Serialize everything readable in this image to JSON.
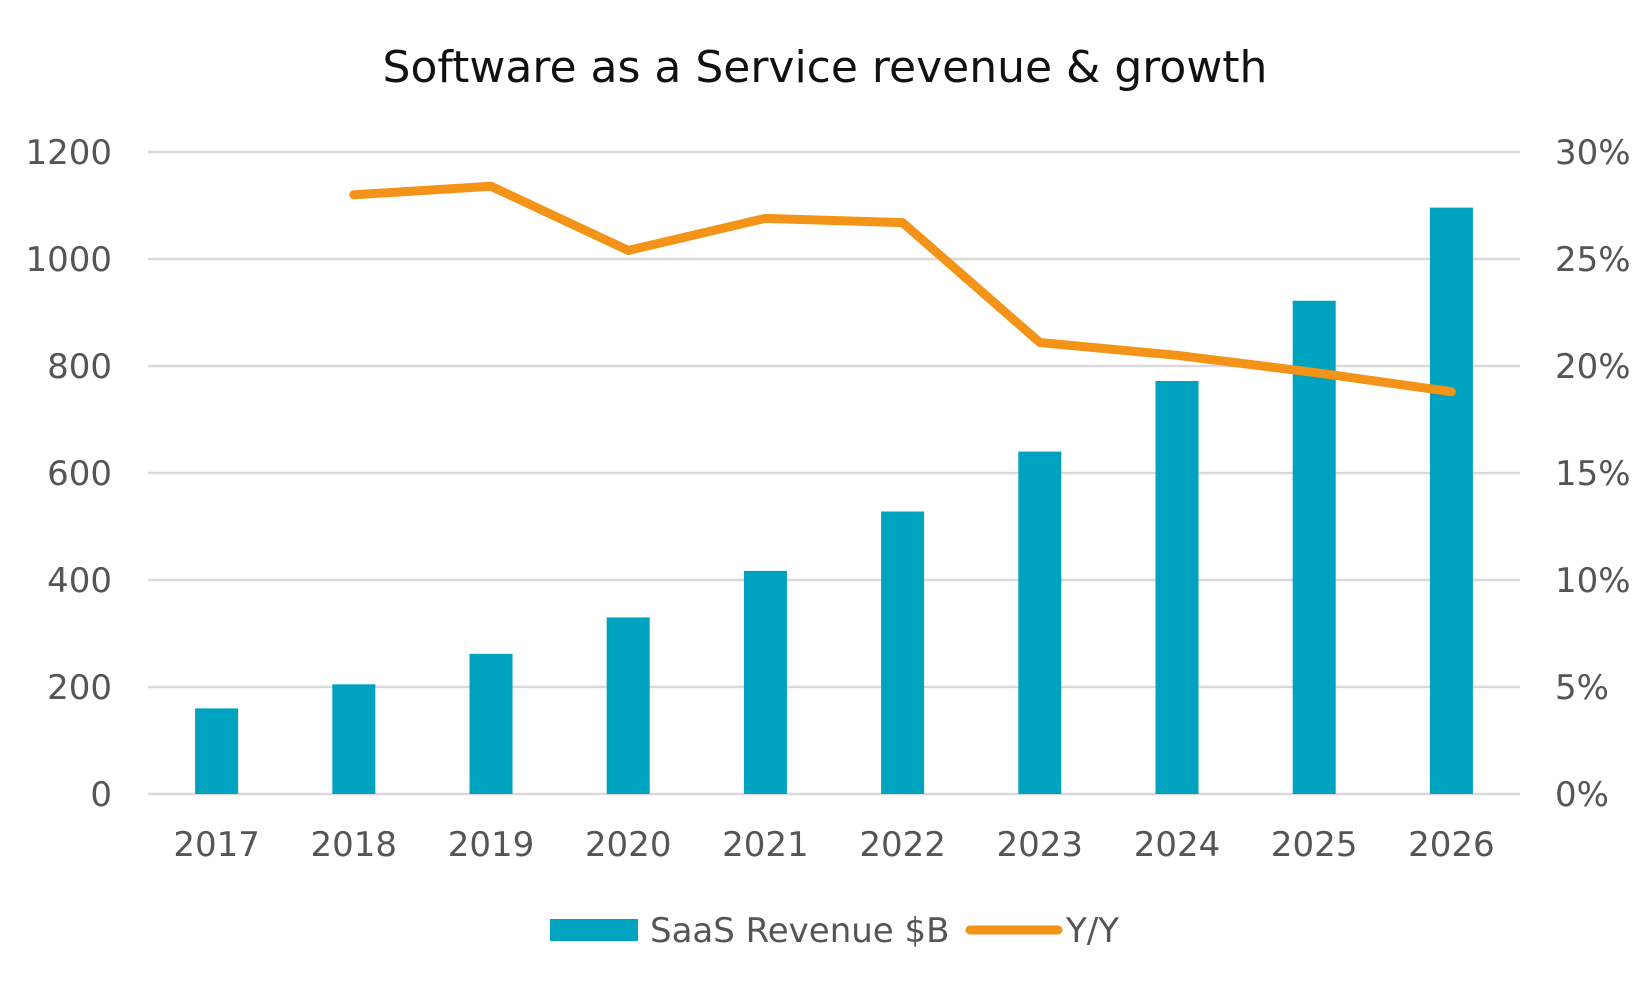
{
  "chart_data": {
    "type": "bar",
    "title": "Software as a Service revenue & growth",
    "categories": [
      "2017",
      "2018",
      "2019",
      "2020",
      "2021",
      "2022",
      "2023",
      "2024",
      "2025",
      "2026"
    ],
    "series": [
      {
        "name": "SaaS Revenue $B",
        "type": "bar",
        "axis": "left",
        "color": "#00a3bf",
        "values": [
          160,
          205,
          262,
          330,
          417,
          528,
          640,
          772,
          922,
          1096
        ]
      },
      {
        "name": "Y/Y",
        "type": "line",
        "axis": "right",
        "color": "#f39318",
        "values": [
          null,
          0.28,
          0.284,
          0.254,
          0.269,
          0.267,
          0.211,
          0.205,
          0.197,
          0.188
        ]
      }
    ],
    "y_left": {
      "min": 0,
      "max": 1200,
      "ticks": [
        0,
        200,
        400,
        600,
        800,
        1000,
        1200
      ],
      "tick_labels": [
        "0",
        "200",
        "400",
        "600",
        "800",
        "1000",
        "1200"
      ]
    },
    "y_right": {
      "min": 0,
      "max": 0.3,
      "ticks": [
        0,
        0.05,
        0.1,
        0.15,
        0.2,
        0.25,
        0.3
      ],
      "tick_labels": [
        "0%",
        "5%",
        "10%",
        "15%",
        "20%",
        "25%",
        "30%"
      ]
    },
    "grid": true,
    "legend": "bottom-center"
  }
}
